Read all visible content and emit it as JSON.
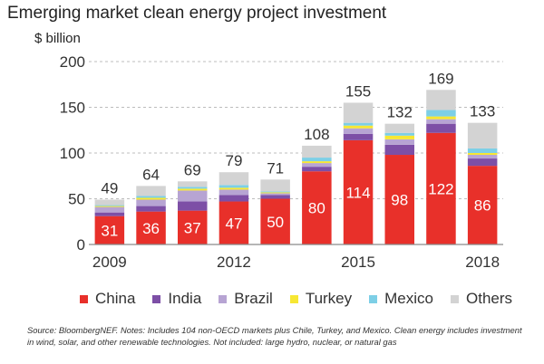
{
  "chart_data": {
    "type": "bar",
    "stacked": true,
    "title": "Emerging market clean energy project investment",
    "unit_label": "$ billion",
    "categories": [
      "2009",
      "2010",
      "2011",
      "2012",
      "2013",
      "2014",
      "2015",
      "2016",
      "2017",
      "2018"
    ],
    "x_tick_labels": [
      "2009",
      "",
      "",
      "2012",
      "",
      "",
      "2015",
      "",
      "",
      "2018"
    ],
    "ylim": [
      0,
      200
    ],
    "yticks": [
      0,
      50,
      100,
      150,
      200
    ],
    "grid": true,
    "legend_position": "bottom",
    "series": [
      {
        "name": "China",
        "color": "#e8302a",
        "values": [
          31,
          36,
          37,
          47,
          50,
          80,
          114,
          98,
          122,
          86
        ]
      },
      {
        "name": "India",
        "color": "#7d4fa6",
        "values": [
          4,
          6,
          10,
          7,
          4,
          5,
          7,
          11,
          10,
          8
        ]
      },
      {
        "name": "Brazil",
        "color": "#b7a4d3",
        "values": [
          6,
          7,
          12,
          6,
          2,
          4,
          6,
          6,
          5,
          4
        ]
      },
      {
        "name": "Turkey",
        "color": "#f7e733",
        "values": [
          1,
          2,
          2,
          2,
          1,
          2,
          3,
          4,
          3,
          2
        ]
      },
      {
        "name": "Mexico",
        "color": "#7dcfe6",
        "values": [
          1,
          2,
          2,
          3,
          1,
          4,
          3,
          3,
          7,
          5
        ]
      },
      {
        "name": "Others",
        "color": "#d3d3d3",
        "values": [
          6,
          11,
          6,
          14,
          13,
          13,
          22,
          10,
          22,
          28
        ]
      }
    ],
    "totals": [
      49,
      64,
      69,
      79,
      71,
      108,
      155,
      132,
      169,
      133
    ],
    "source": "Source: BloombergNEF. Notes: Includes 104 non-OECD markets plus Chile, Turkey, and Mexico. Clean energy includes investment in wind, solar, and other renewable technologies. Not included: large hydro, nuclear, or natural gas"
  }
}
